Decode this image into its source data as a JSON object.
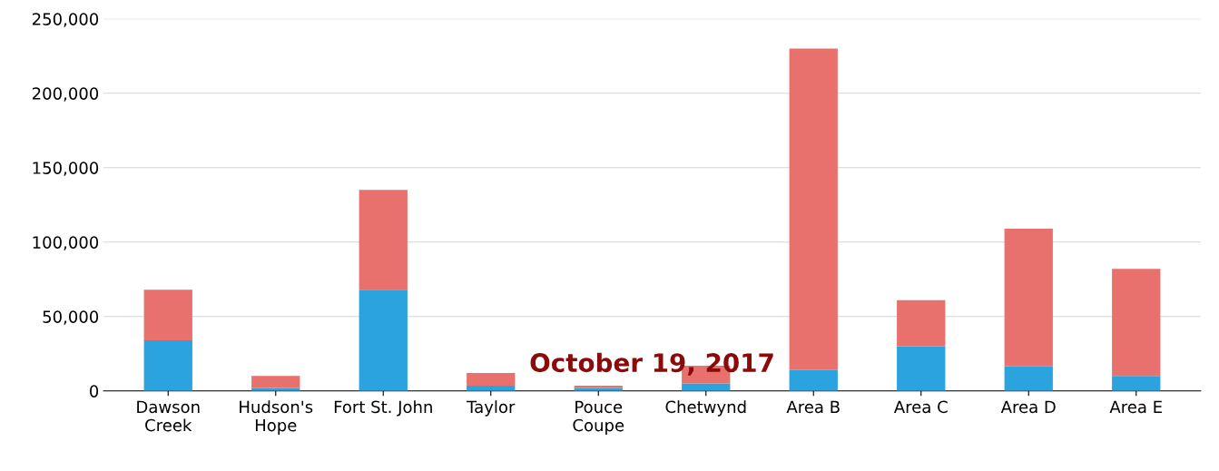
{
  "chart_data": {
    "type": "bar",
    "stacked": true,
    "categories": [
      "Dawson\nCreek",
      "Hudson's\nHope",
      "Fort St. John",
      "Taylor",
      "Pouce\nCoupe",
      "Chetwynd",
      "Area B",
      "Area C",
      "Area D",
      "Area E"
    ],
    "series": [
      {
        "color": "#2aa3df",
        "values": [
          34000,
          2000,
          68000,
          3500,
          2000,
          5000,
          14000,
          30000,
          16500,
          10000
        ]
      },
      {
        "color": "#e8716d",
        "values": [
          34000,
          8000,
          67000,
          8500,
          1500,
          12000,
          216000,
          31000,
          92500,
          72000
        ]
      }
    ],
    "ylim": [
      0,
      250000
    ],
    "yticks": [
      {
        "value": 0,
        "label": "0"
      },
      {
        "value": 50000,
        "label": "50,000"
      },
      {
        "value": 100000,
        "label": "100,000"
      },
      {
        "value": 150000,
        "label": "150,000"
      },
      {
        "value": 200000,
        "label": "200,000"
      },
      {
        "value": 250000,
        "label": "250,000"
      }
    ],
    "grid": "y",
    "annotations": [
      "October 19, 2017"
    ]
  }
}
